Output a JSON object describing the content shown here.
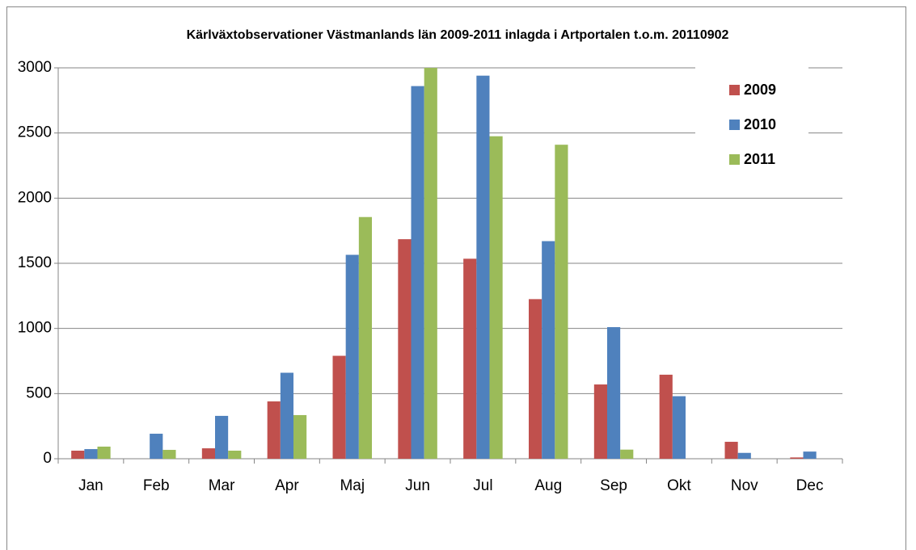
{
  "chart_data": {
    "type": "bar",
    "title": "Kärlväxtobservationer Västmanlands län 2009-2011 inlagda i Artportalen t.o.m. 20110902",
    "categories": [
      "Jan",
      "Feb",
      "Mar",
      "Apr",
      "Maj",
      "Jun",
      "Jul",
      "Aug",
      "Sep",
      "Okt",
      "Nov",
      "Dec"
    ],
    "series": [
      {
        "name": "2009",
        "color": "#c0504d",
        "values": [
          62,
          0,
          80,
          440,
          790,
          1685,
          1535,
          1225,
          570,
          645,
          130,
          10
        ]
      },
      {
        "name": "2010",
        "color": "#4f81bd",
        "values": [
          74,
          192,
          329,
          660,
          1565,
          2860,
          2940,
          1670,
          1010,
          480,
          45,
          55
        ]
      },
      {
        "name": "2011",
        "color": "#9bbb59",
        "values": [
          93,
          68,
          62,
          335,
          1855,
          3000,
          2475,
          2410,
          70,
          0,
          0,
          0
        ]
      }
    ],
    "ylim": [
      0,
      3000
    ],
    "yticks": [
      0,
      500,
      1000,
      1500,
      2000,
      2500,
      3000
    ],
    "grid": true,
    "legend": "top-right"
  }
}
